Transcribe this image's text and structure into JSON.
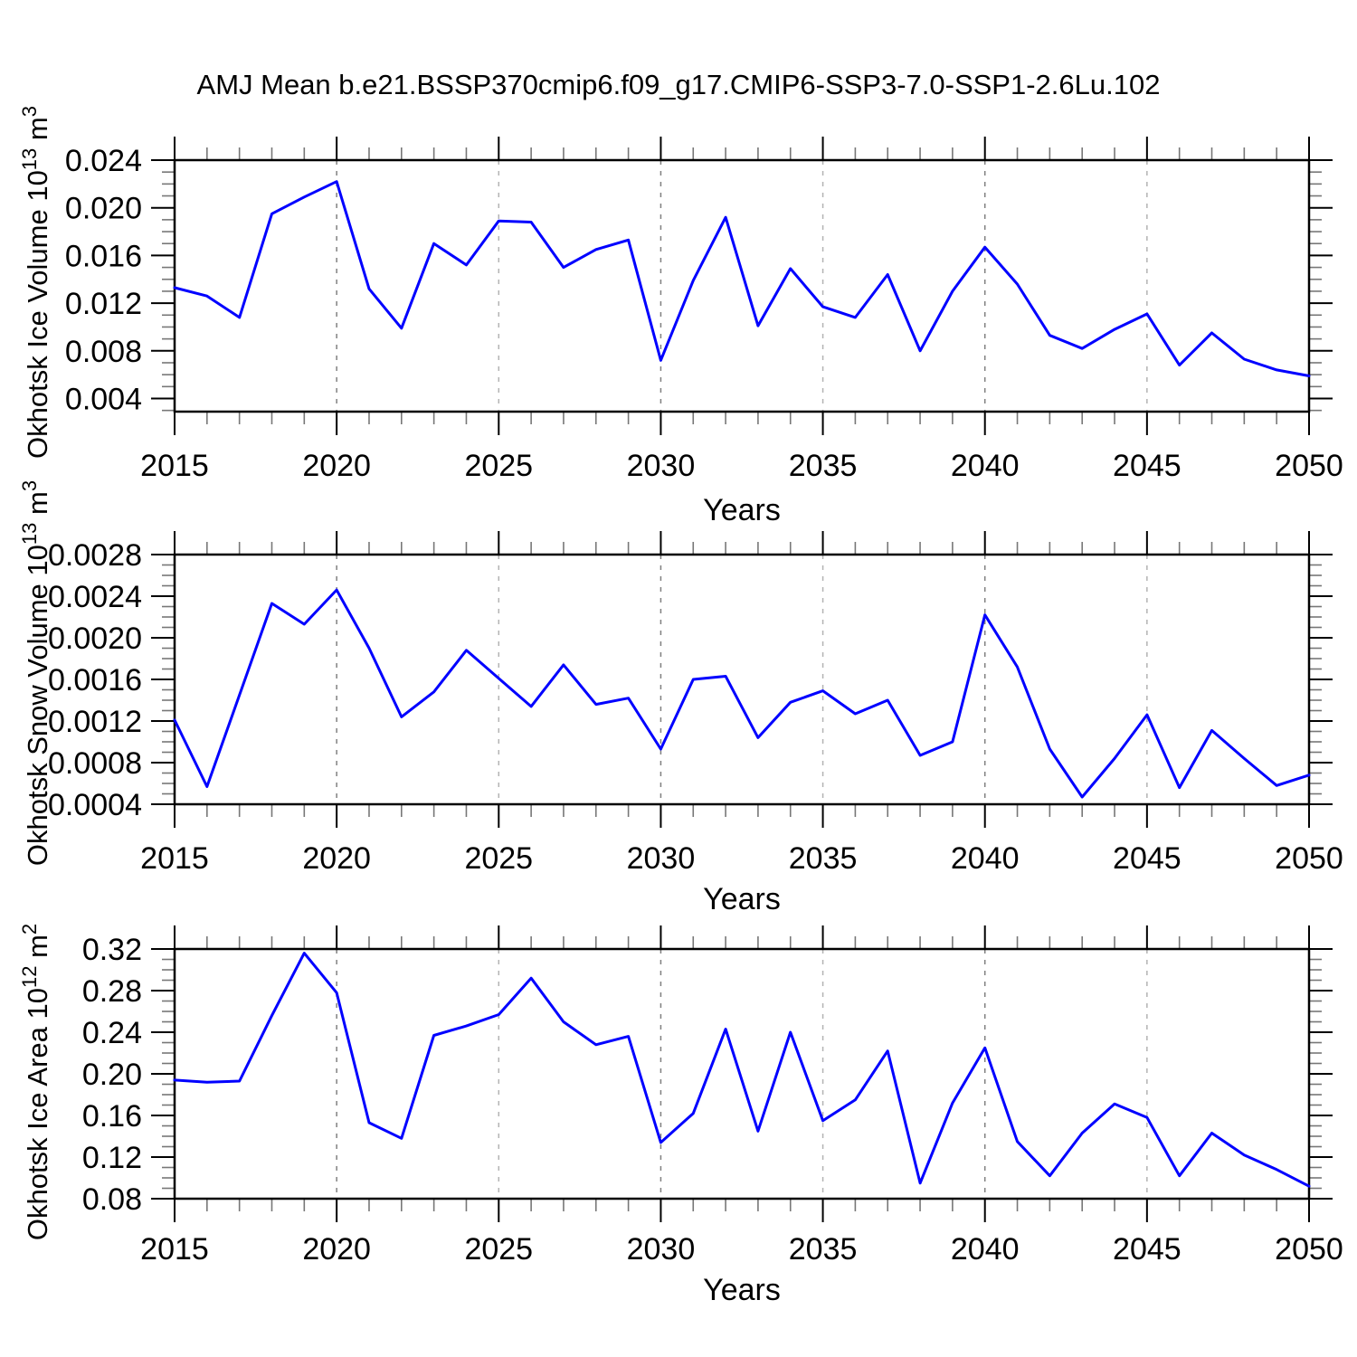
{
  "title": "AMJ Mean b.e21.BSSP370cmip6.f09_g17.CMIP6-SSP3-7.0-SSP1-2.6Lu.102",
  "colors": {
    "line": "#0000ff",
    "frame": "#000000",
    "major_tick": "#000000",
    "minor_tick": "#777777",
    "grid_decade": "#808080",
    "grid_middecade": "#b3b3b3",
    "text": "#000000"
  },
  "chart_data": [
    {
      "type": "line",
      "id": "ice-volume",
      "ylabel_parts": [
        {
          "t": "Okhotsk Ice Volume 10"
        },
        {
          "t": "13",
          "sup": true
        },
        {
          "t": " m"
        },
        {
          "t": "3",
          "sup": true
        }
      ],
      "xlabel": "Years",
      "xlim": [
        2015,
        2050
      ],
      "ylim": [
        0.0029,
        0.024
      ],
      "xticks": [
        2015,
        2020,
        2025,
        2030,
        2035,
        2040,
        2045,
        2050
      ],
      "xtick_labels": [
        "2015",
        "2020",
        "2025",
        "2030",
        "2035",
        "2040",
        "2045",
        "2050"
      ],
      "xminor_step": 1,
      "grid_years": [
        2020,
        2025,
        2030,
        2035,
        2040,
        2045
      ],
      "yticks": [
        0.004,
        0.008,
        0.012,
        0.016,
        0.02,
        0.024
      ],
      "ytick_labels": [
        "0.004",
        "0.008",
        "0.012",
        "0.016",
        "0.020",
        "0.024"
      ],
      "yminor_step": 0.001,
      "x": [
        2015,
        2016,
        2017,
        2018,
        2019,
        2020,
        2021,
        2022,
        2023,
        2024,
        2025,
        2026,
        2027,
        2028,
        2029,
        2030,
        2031,
        2032,
        2033,
        2034,
        2035,
        2036,
        2037,
        2038,
        2039,
        2040,
        2041,
        2042,
        2043,
        2044,
        2045,
        2046,
        2047,
        2048,
        2049,
        2050
      ],
      "values": [
        0.0133,
        0.0126,
        0.0108,
        0.0195,
        0.0209,
        0.0222,
        0.0132,
        0.0099,
        0.017,
        0.0152,
        0.0189,
        0.0188,
        0.015,
        0.0165,
        0.0173,
        0.0072,
        0.0139,
        0.0192,
        0.0101,
        0.0149,
        0.0117,
        0.0108,
        0.0144,
        0.008,
        0.013,
        0.0167,
        0.0136,
        0.0093,
        0.0082,
        0.0098,
        0.0111,
        0.0068,
        0.0095,
        0.0073,
        0.0064,
        0.0059
      ]
    },
    {
      "type": "line",
      "id": "snow-volume",
      "ylabel_parts": [
        {
          "t": "Okhotsk Snow Volume 10"
        },
        {
          "t": "13",
          "sup": true
        },
        {
          "t": " m"
        },
        {
          "t": "3",
          "sup": true
        }
      ],
      "xlabel": "Years",
      "xlim": [
        2015,
        2050
      ],
      "ylim": [
        0.0004,
        0.0028
      ],
      "xticks": [
        2015,
        2020,
        2025,
        2030,
        2035,
        2040,
        2045,
        2050
      ],
      "xtick_labels": [
        "2015",
        "2020",
        "2025",
        "2030",
        "2035",
        "2040",
        "2045",
        "2050"
      ],
      "xminor_step": 1,
      "grid_years": [
        2020,
        2025,
        2030,
        2035,
        2040,
        2045
      ],
      "yticks": [
        0.0004,
        0.0008,
        0.0012,
        0.0016,
        0.002,
        0.0024,
        0.0028
      ],
      "ytick_labels": [
        "0.0004",
        "0.0008",
        "0.0012",
        "0.0016",
        "0.0020",
        "0.0024",
        "0.0028"
      ],
      "yminor_step": 0.0001,
      "x": [
        2015,
        2016,
        2017,
        2018,
        2019,
        2020,
        2021,
        2022,
        2023,
        2024,
        2025,
        2026,
        2027,
        2028,
        2029,
        2030,
        2031,
        2032,
        2033,
        2034,
        2035,
        2036,
        2037,
        2038,
        2039,
        2040,
        2041,
        2042,
        2043,
        2044,
        2045,
        2046,
        2047,
        2048,
        2049,
        2050
      ],
      "values": [
        0.00121,
        0.00057,
        0.00145,
        0.00233,
        0.00213,
        0.00246,
        0.0019,
        0.00124,
        0.00148,
        0.00188,
        0.00161,
        0.00134,
        0.00174,
        0.00136,
        0.00142,
        0.00093,
        0.0016,
        0.00163,
        0.00104,
        0.00138,
        0.00149,
        0.00127,
        0.0014,
        0.00087,
        0.001,
        0.00222,
        0.00172,
        0.00093,
        0.00047,
        0.00084,
        0.00126,
        0.00056,
        0.00111,
        0.00084,
        0.00058,
        0.00068
      ]
    },
    {
      "type": "line",
      "id": "ice-area",
      "ylabel_parts": [
        {
          "t": "Okhotsk Ice Area 10"
        },
        {
          "t": "12",
          "sup": true
        },
        {
          "t": " m"
        },
        {
          "t": "2",
          "sup": true
        }
      ],
      "xlabel": "Years",
      "xlim": [
        2015,
        2050
      ],
      "ylim": [
        0.08,
        0.32
      ],
      "xticks": [
        2015,
        2020,
        2025,
        2030,
        2035,
        2040,
        2045,
        2050
      ],
      "xtick_labels": [
        "2015",
        "2020",
        "2025",
        "2030",
        "2035",
        "2040",
        "2045",
        "2050"
      ],
      "xminor_step": 1,
      "grid_years": [
        2020,
        2025,
        2030,
        2035,
        2040,
        2045
      ],
      "yticks": [
        0.08,
        0.12,
        0.16,
        0.2,
        0.24,
        0.28,
        0.32
      ],
      "ytick_labels": [
        "0.08",
        "0.12",
        "0.16",
        "0.20",
        "0.24",
        "0.28",
        "0.32"
      ],
      "yminor_step": 0.01,
      "x": [
        2015,
        2016,
        2017,
        2018,
        2019,
        2020,
        2021,
        2022,
        2023,
        2024,
        2025,
        2026,
        2027,
        2028,
        2029,
        2030,
        2031,
        2032,
        2033,
        2034,
        2035,
        2036,
        2037,
        2038,
        2039,
        2040,
        2041,
        2042,
        2043,
        2044,
        2045,
        2046,
        2047,
        2048,
        2049,
        2050
      ],
      "values": [
        0.194,
        0.192,
        0.193,
        0.256,
        0.316,
        0.278,
        0.153,
        0.138,
        0.237,
        0.246,
        0.257,
        0.292,
        0.25,
        0.228,
        0.236,
        0.134,
        0.162,
        0.243,
        0.145,
        0.24,
        0.155,
        0.175,
        0.222,
        0.095,
        0.172,
        0.225,
        0.135,
        0.102,
        0.143,
        0.171,
        0.158,
        0.102,
        0.143,
        0.122,
        0.108,
        0.092
      ]
    }
  ]
}
